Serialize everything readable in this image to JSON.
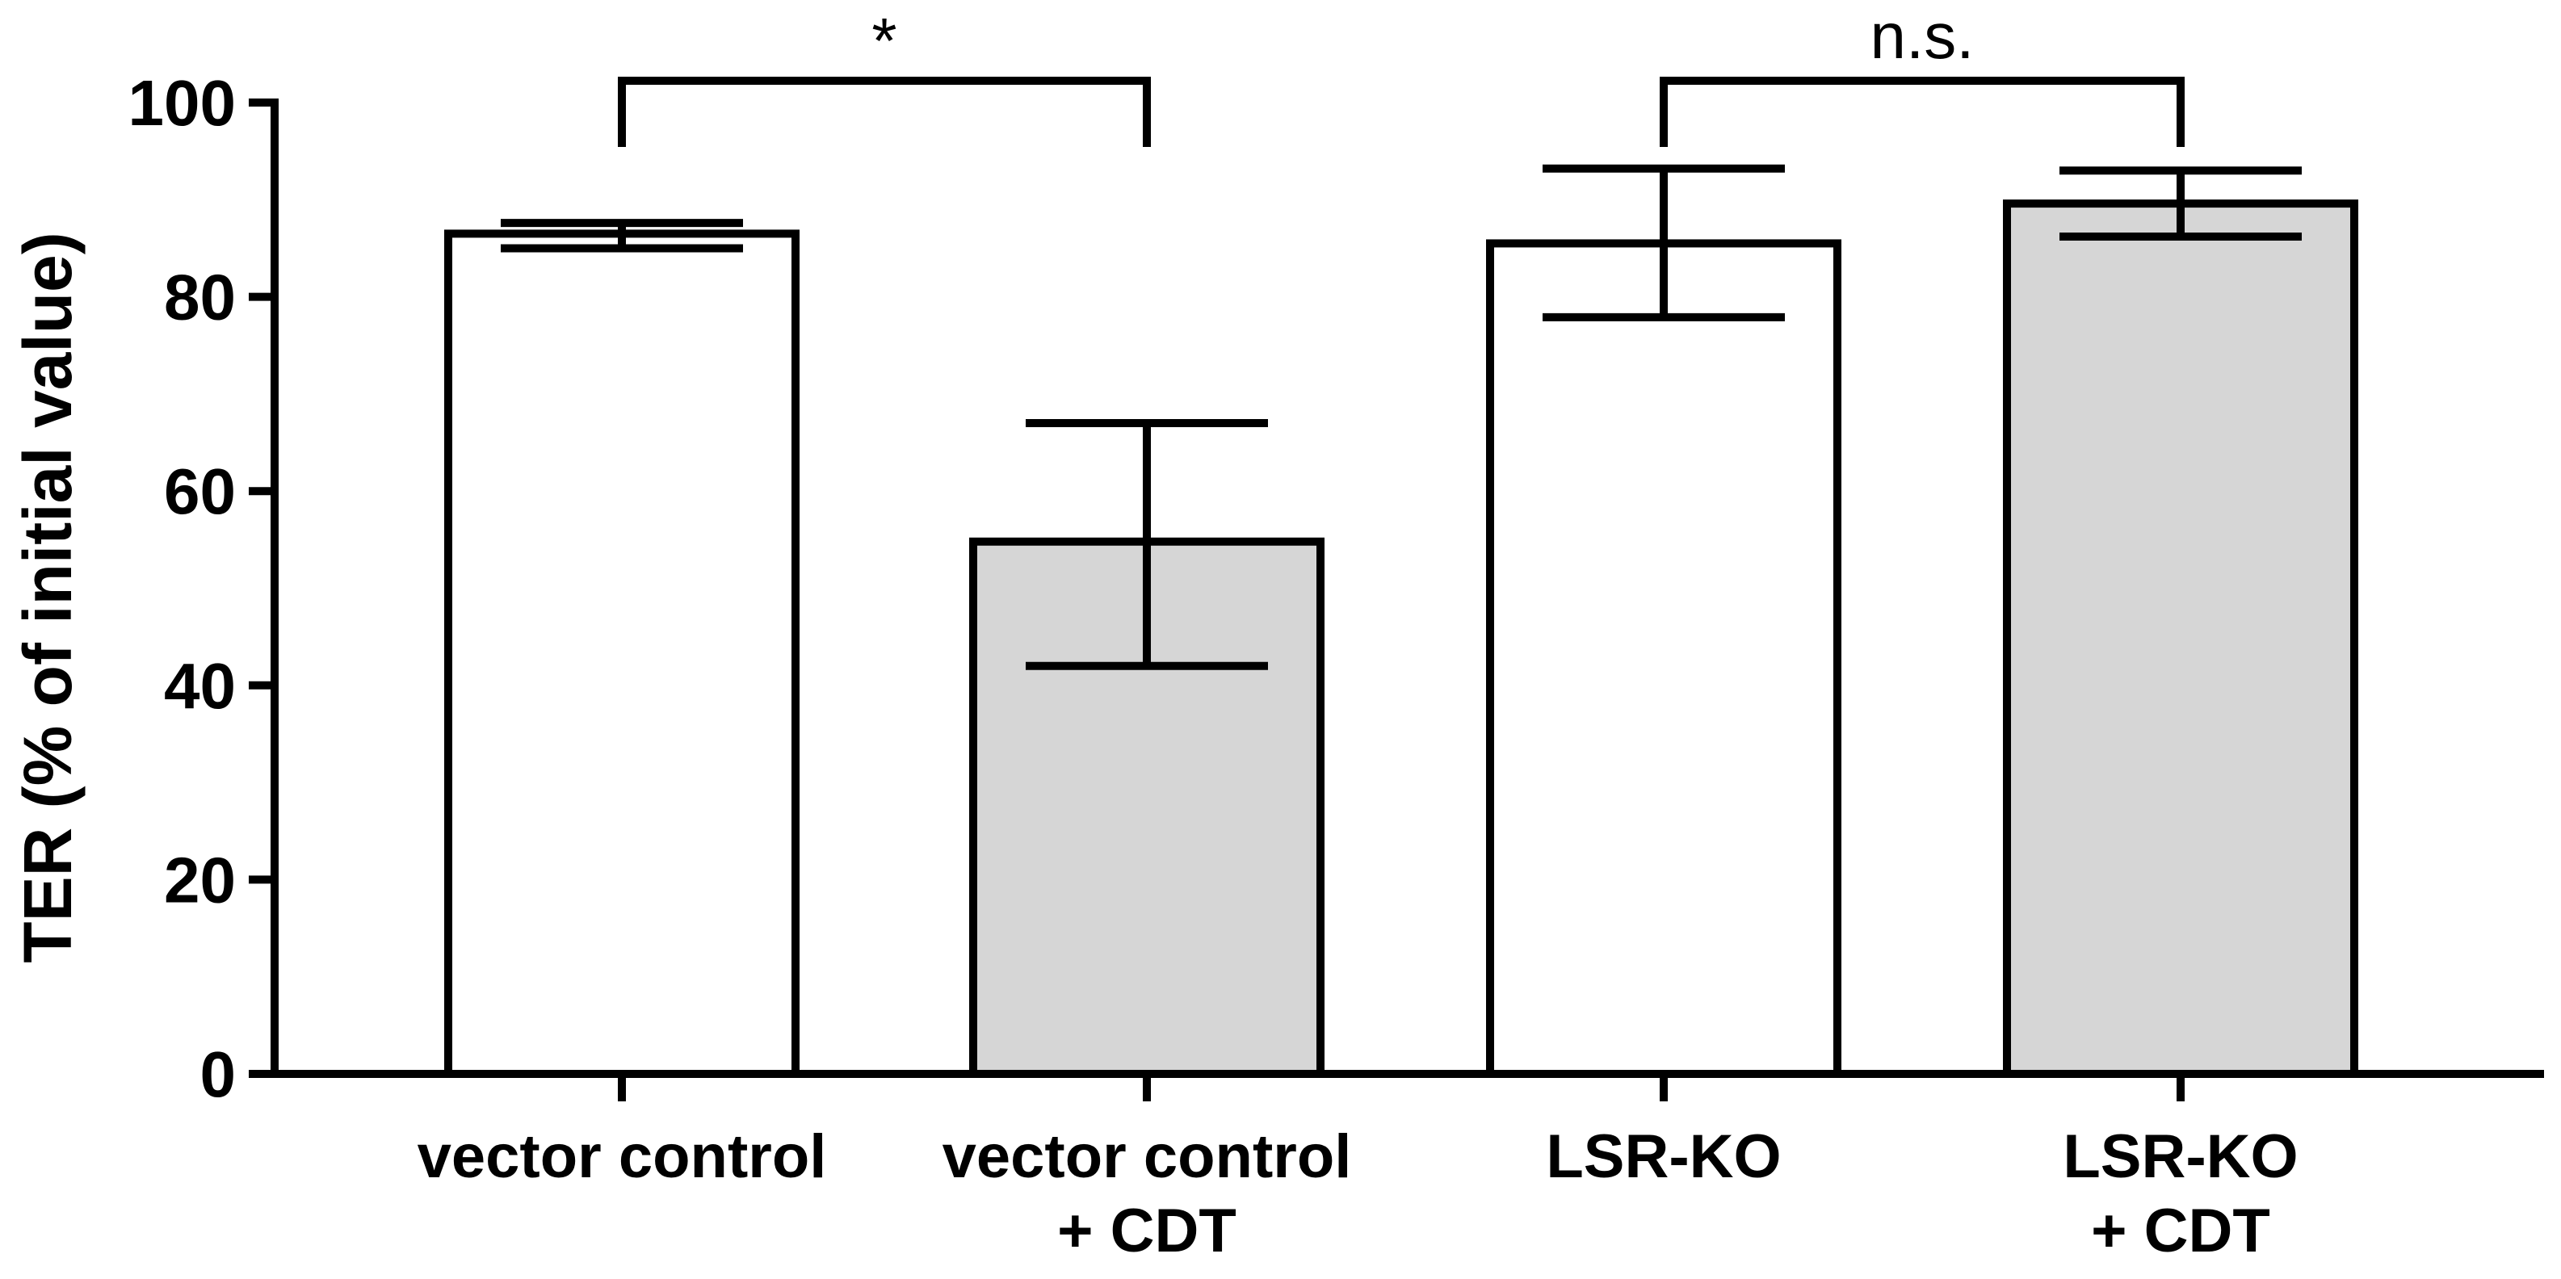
{
  "chart_data": {
    "type": "bar",
    "title": "",
    "xlabel": "",
    "ylabel": "TER (% of initial value)",
    "ylim": [
      0,
      100
    ],
    "yticks": [
      "0",
      "20",
      "40",
      "60",
      "80",
      "100"
    ],
    "categories": [
      {
        "lines": [
          "vector control"
        ]
      },
      {
        "lines": [
          "vector control",
          "+ CDT"
        ]
      },
      {
        "lines": [
          "LSR-KO"
        ]
      },
      {
        "lines": [
          "LSR-KO",
          "+ CDT"
        ]
      }
    ],
    "values": [
      86.5,
      54.8,
      85.5,
      89.6
    ],
    "error_low": [
      85.0,
      42.0,
      77.9,
      86.2
    ],
    "error_high": [
      87.6,
      67.0,
      93.2,
      93.0
    ],
    "fills": [
      "#ffffff",
      "#d6d6d6",
      "#ffffff",
      "#d6d6d6"
    ],
    "grid": false,
    "significance": [
      {
        "from": 0,
        "to": 1,
        "label": "*"
      },
      {
        "from": 2,
        "to": 3,
        "label": "n.s."
      }
    ]
  }
}
